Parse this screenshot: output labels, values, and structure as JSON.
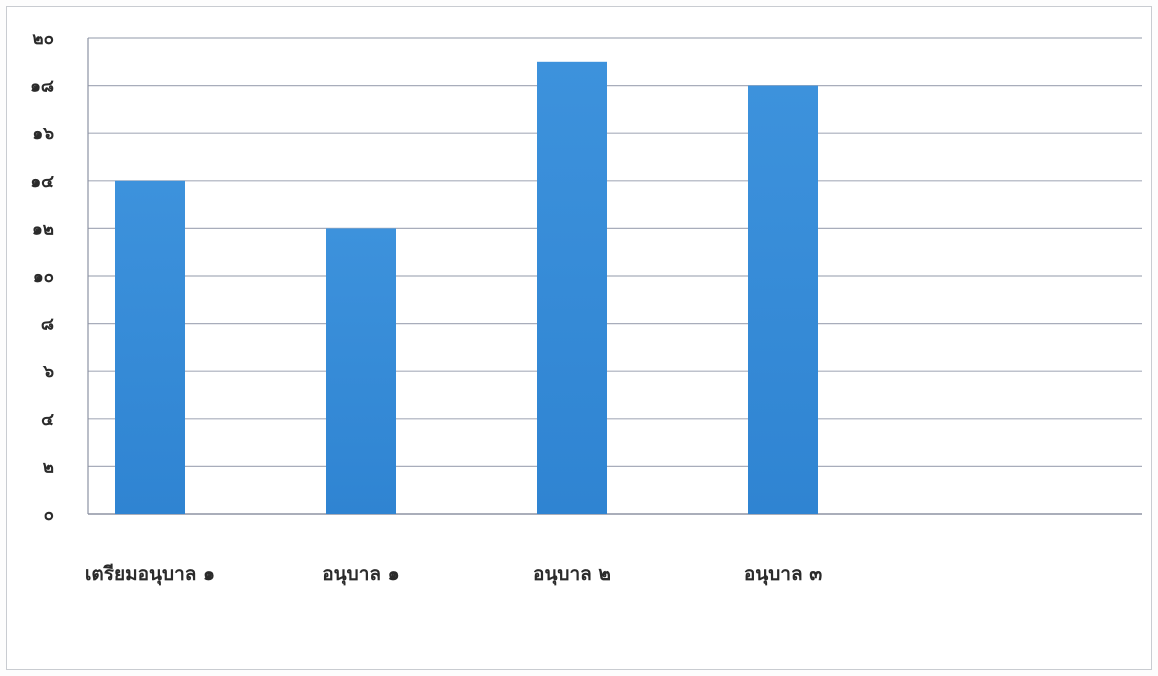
{
  "chart_data": {
    "type": "bar",
    "categories": [
      "เตรียมอนุบาล ๑",
      "อนุบาล ๑",
      "อนุบาล ๒",
      "อนุบาล ๓"
    ],
    "values": [
      14,
      12,
      19,
      18
    ],
    "ylim": [
      0,
      20
    ],
    "yticks": [
      0,
      2,
      4,
      6,
      8,
      10,
      12,
      14,
      16,
      18,
      20
    ],
    "ytick_labels": [
      "๐",
      "๒",
      "๔",
      "๖",
      "๘",
      "๑๐",
      "๑๒",
      "๑๔",
      "๑๖",
      "๑๘",
      "๒๐"
    ],
    "grid": true,
    "legend": "none",
    "title": "",
    "xlabel": "",
    "ylabel": "",
    "colors": {
      "bar_top": "#3d92dc",
      "bar_bottom": "#2f84d2",
      "grid": "#a8adbb",
      "axis": "#8d93a3"
    }
  }
}
